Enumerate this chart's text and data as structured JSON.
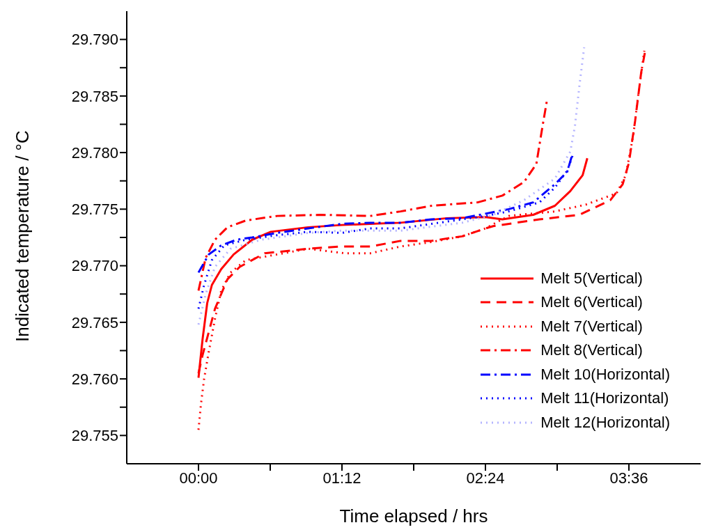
{
  "chart_data": {
    "type": "line",
    "xlabel": "Time elapsed / hrs",
    "ylabel": "Indicated temperature / °C",
    "xlim": [
      -0.6,
      4.2
    ],
    "xticks": [
      {
        "value": 0,
        "label": "00:00"
      },
      {
        "value": 0.6,
        "label": null
      },
      {
        "value": 1.2,
        "label": "01:12"
      },
      {
        "value": 1.8,
        "label": null
      },
      {
        "value": 2.4,
        "label": "02:24"
      },
      {
        "value": 3.0,
        "label": null
      },
      {
        "value": 3.6,
        "label": "03:36"
      }
    ],
    "ylim": [
      29.7525,
      29.7925
    ],
    "yticks": [
      {
        "value": 29.755,
        "label": "29.755"
      },
      {
        "value": 29.7575,
        "label": null
      },
      {
        "value": 29.76,
        "label": "29.760"
      },
      {
        "value": 29.7625,
        "label": null
      },
      {
        "value": 29.765,
        "label": "29.765"
      },
      {
        "value": 29.7675,
        "label": null
      },
      {
        "value": 29.77,
        "label": "29.770"
      },
      {
        "value": 29.7725,
        "label": null
      },
      {
        "value": 29.775,
        "label": "29.775"
      },
      {
        "value": 29.7775,
        "label": null
      },
      {
        "value": 29.78,
        "label": "29.780"
      },
      {
        "value": 29.7825,
        "label": null
      },
      {
        "value": 29.785,
        "label": "29.785"
      },
      {
        "value": 29.7875,
        "label": null
      },
      {
        "value": 29.79,
        "label": "29.790"
      }
    ],
    "legend": "bottom right",
    "marker": "none",
    "series": [
      {
        "name": "Melt 5(Vertical)",
        "color": "#ff0000",
        "line_style": "solid",
        "x": [
          0,
          0.034,
          0.073,
          0.112,
          0.19,
          0.294,
          0.449,
          0.605,
          0.917,
          1.2,
          1.436,
          1.69,
          2.077,
          2.4,
          2.542,
          2.8,
          2.981,
          3.11,
          3.213,
          3.252
        ],
        "values": [
          29.7601,
          29.7635,
          29.7667,
          29.7683,
          29.7697,
          29.771,
          29.7723,
          29.773,
          29.7734,
          29.7736,
          29.7737,
          29.7738,
          29.7742,
          29.7743,
          29.7741,
          29.7745,
          29.7753,
          29.7766,
          29.778,
          29.7795
        ]
      },
      {
        "name": "Melt 6(Vertical)",
        "color": "#ff0000",
        "line_style": "dashed",
        "x": [
          0,
          0.034,
          0.138,
          0.242,
          0.345,
          0.553,
          0.917,
          1.177,
          1.436,
          1.69,
          1.948,
          2.206,
          2.4,
          2.465,
          2.852,
          3.187,
          3.445,
          3.548,
          3.6,
          3.652,
          3.703,
          3.742
        ],
        "values": [
          29.7605,
          29.7621,
          29.7662,
          29.7688,
          29.7699,
          29.7711,
          29.7715,
          29.7717,
          29.7717,
          29.7722,
          29.7722,
          29.7726,
          29.7733,
          29.7735,
          29.7741,
          29.7745,
          29.7758,
          29.7772,
          29.7791,
          29.7828,
          29.7871,
          29.7893
        ]
      },
      {
        "name": "Melt 7(Vertical)",
        "color": "#ff0000",
        "line_style": "dotted",
        "x": [
          0,
          0.021,
          0.047,
          0.086,
          0.138,
          0.19,
          0.268,
          0.397,
          0.657,
          0.917,
          1.229,
          1.436,
          1.69,
          1.948,
          2.206,
          2.4,
          2.594,
          2.981,
          3.239,
          3.497,
          3.574,
          3.639,
          3.677,
          3.729
        ],
        "values": [
          29.7555,
          29.7578,
          29.76,
          29.7624,
          29.7653,
          29.7678,
          29.7694,
          29.7705,
          29.771,
          29.7715,
          29.7711,
          29.7711,
          29.7717,
          29.7721,
          29.7726,
          29.7733,
          29.7744,
          29.7748,
          29.7754,
          29.7764,
          29.778,
          29.7817,
          29.785,
          29.789
        ]
      },
      {
        "name": "Melt 8(Vertical)",
        "color": "#ff0000",
        "line_style": "dashdot",
        "x": [
          0,
          0.06,
          0.138,
          0.242,
          0.397,
          0.657,
          1.021,
          1.436,
          1.69,
          1.948,
          2.335,
          2.542,
          2.723,
          2.826,
          2.877,
          2.916
        ],
        "values": [
          29.7678,
          29.7707,
          29.7723,
          29.7734,
          29.774,
          29.7744,
          29.7745,
          29.7744,
          29.7748,
          29.7753,
          29.7756,
          29.7762,
          29.7774,
          29.779,
          29.7823,
          29.7847
        ]
      },
      {
        "name": "Melt 10(Horizontal)",
        "color": "#0000ff",
        "line_style": "dashdot",
        "x": [
          0,
          0.086,
          0.19,
          0.319,
          0.449,
          0.657,
          0.917,
          1.2,
          1.436,
          1.69,
          1.948,
          2.206,
          2.4,
          2.594,
          2.8,
          2.981,
          3.084,
          3.123
        ],
        "values": [
          29.7694,
          29.771,
          29.7718,
          29.7723,
          29.7725,
          29.7729,
          29.7733,
          29.7737,
          29.7738,
          29.7738,
          29.7741,
          29.7742,
          29.7746,
          29.775,
          29.7756,
          29.7772,
          29.7783,
          29.7797
        ]
      },
      {
        "name": "Melt 11(Horizontal)",
        "color": "#0000ff",
        "line_style": "dotted",
        "x": [
          0,
          0.047,
          0.112,
          0.216,
          0.397,
          0.657,
          0.917,
          1.2,
          1.436,
          1.69,
          1.948,
          2.206,
          2.4,
          2.594,
          2.852,
          2.981,
          3.084,
          3.135
        ],
        "values": [
          29.7662,
          29.7683,
          29.7705,
          29.7718,
          29.7723,
          29.7727,
          29.773,
          29.7729,
          29.7733,
          29.7733,
          29.7737,
          29.7741,
          29.7744,
          29.7748,
          29.7756,
          29.7769,
          29.7784,
          29.7799
        ]
      },
      {
        "name": "Melt 12(Horizontal)",
        "color": "#b4b4ff",
        "line_style": "dotted",
        "x": [
          0,
          0.06,
          0.138,
          0.268,
          0.527,
          0.917,
          1.2,
          1.436,
          1.69,
          2.206,
          2.465,
          2.723,
          2.981,
          3.11,
          3.148,
          3.187,
          3.226
        ],
        "values": [
          29.7648,
          29.7675,
          29.7699,
          29.7715,
          29.7723,
          29.7729,
          29.7731,
          29.7731,
          29.7731,
          29.7738,
          29.7745,
          29.7758,
          29.7777,
          29.7801,
          29.7823,
          29.786,
          29.7893
        ]
      }
    ]
  }
}
